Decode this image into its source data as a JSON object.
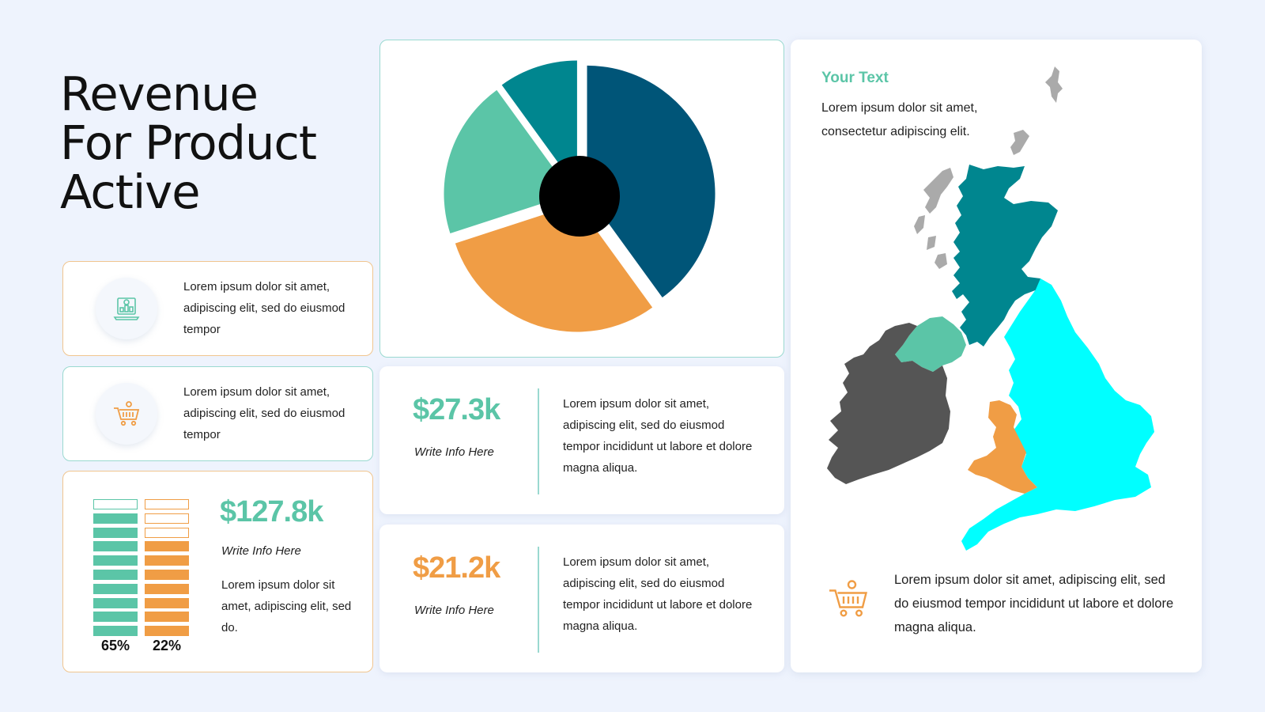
{
  "title": {
    "line1": "Revenue",
    "line2": "For Product",
    "line3": "Active"
  },
  "colors": {
    "teal_light": "#5bc5a7",
    "orange": "#f09d45",
    "teal": "#00868f",
    "navy": "#005578",
    "cyan": "#00ffff",
    "gray": "#555555"
  },
  "info_cards": [
    {
      "icon": "laptop-chart-icon",
      "text": "Lorem ipsum dolor sit amet, adipiscing elit, sed do eiusmod tempor"
    },
    {
      "icon": "shopping-cart-icon",
      "text": "Lorem ipsum dolor sit amet, adipiscing elit, sed do eiusmod tempor"
    }
  ],
  "bars_card": {
    "value": "$127.8k",
    "subtitle": "Write Info Here",
    "description": "Lorem ipsum dolor sit amet, adipiscing elit, sed do.",
    "bars": [
      {
        "label": "65%",
        "filled": 10,
        "total": 10,
        "color": "#5bc5a7",
        "empty_top": 1
      },
      {
        "label": "22%",
        "filled": 7,
        "total": 10,
        "color": "#f09d45",
        "empty_top": 3
      }
    ]
  },
  "chart_data": {
    "type": "pie",
    "title": "",
    "slices": [
      {
        "value": 40,
        "color": "#005578"
      },
      {
        "value": 30,
        "color": "#f09d45"
      },
      {
        "value": 20,
        "color": "#5bc5a7"
      },
      {
        "value": 10,
        "color": "#00868f"
      }
    ],
    "donut_hole": true
  },
  "stats": [
    {
      "value": "$27.3k",
      "color": "#5bc5a7",
      "subtitle": "Write Info Here",
      "description": "Lorem ipsum dolor sit amet, adipiscing elit, sed do eiusmod tempor incididunt ut labore et dolore magna aliqua."
    },
    {
      "value": "$21.2k",
      "color": "#f09d45",
      "subtitle": "Write Info Here",
      "description": "Lorem ipsum dolor sit amet, adipiscing elit, sed do eiusmod tempor incididunt ut labore et dolore magna aliqua."
    }
  ],
  "map_card": {
    "heading": "Your Text",
    "text": "Lorem ipsum dolor sit amet, consectetur adipiscing elit.",
    "footer_icon": "shopping-cart-icon",
    "footer_text": "Lorem ipsum dolor sit amet, adipiscing elit, sed do eiusmod tempor incididunt ut labore et dolore magna aliqua.",
    "regions": [
      {
        "name": "Scotland",
        "color": "#00868f"
      },
      {
        "name": "Northern Ireland",
        "color": "#5bc5a7"
      },
      {
        "name": "Ireland",
        "color": "#555555"
      },
      {
        "name": "Wales",
        "color": "#f09d45"
      },
      {
        "name": "England",
        "color": "#00ffff"
      }
    ]
  }
}
